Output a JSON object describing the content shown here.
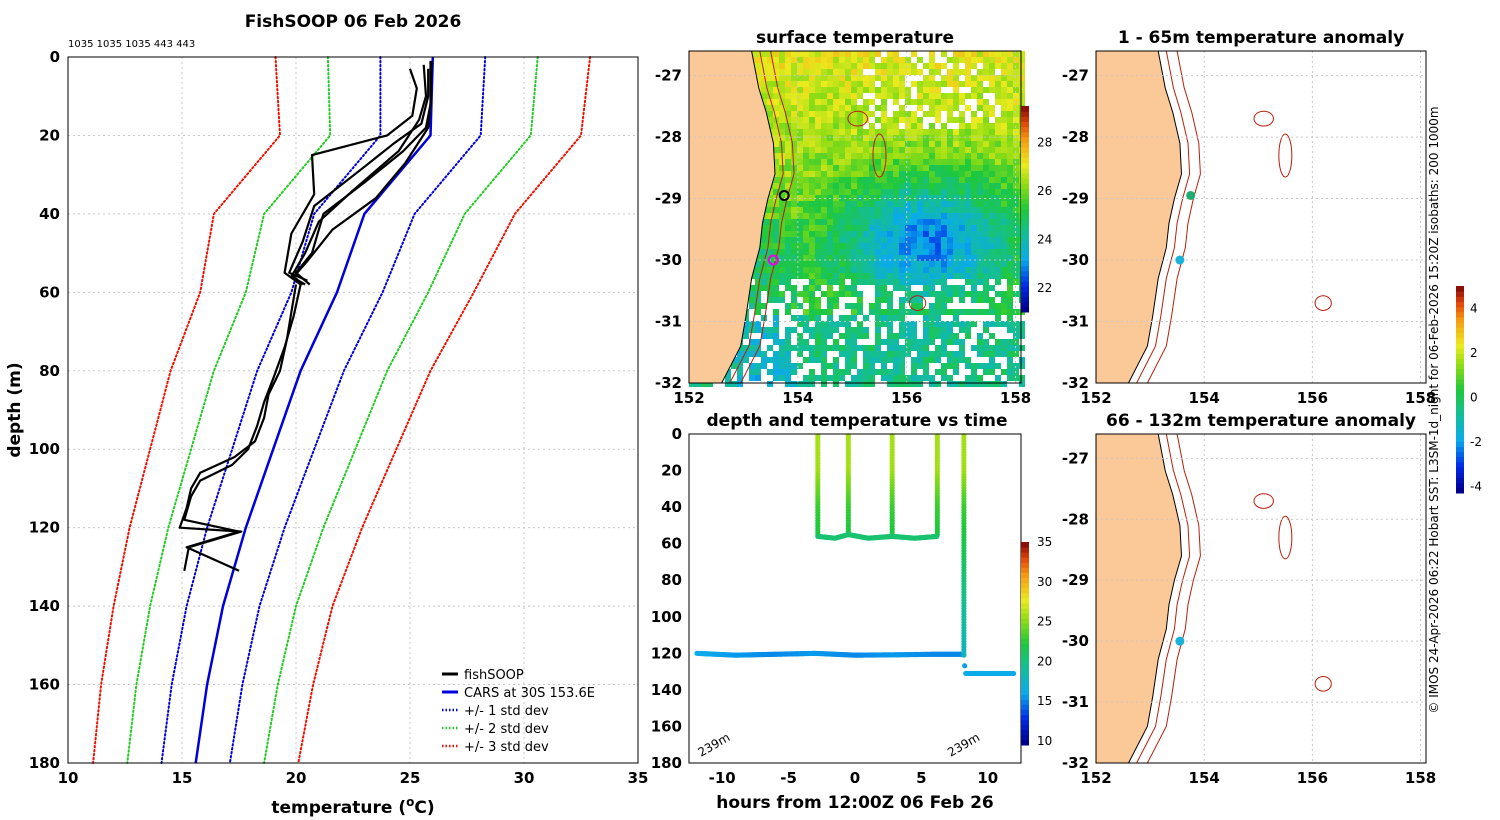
{
  "chart_data": [
    {
      "type": "line",
      "panel": "profile",
      "title": "FishSOOP 06 Feb 2026",
      "subtitle": "1035 1035 1035 443 443",
      "xlabel": "temperature",
      "xlabel_unit_pre": "(",
      "xlabel_unit_sup": "o",
      "xlabel_unit_post": "C)",
      "ylabel": "depth (m)",
      "xlim": [
        10,
        35
      ],
      "ylim": [
        0,
        180
      ],
      "y_reversed": true,
      "grid": true,
      "xticks": [
        "10",
        "15",
        "20",
        "25",
        "30",
        "35"
      ],
      "yticks": [
        "0",
        "20",
        "40",
        "60",
        "80",
        "100",
        "120",
        "140",
        "160",
        "180"
      ],
      "legend_position": "bottom-right",
      "legend": [
        {
          "label": "fishSOOP",
          "color": "#000000",
          "style": "solid"
        },
        {
          "label": "CARS at 30S 153.6E",
          "color": "#0000dd",
          "style": "solid"
        },
        {
          "label": "+/- 1 std dev",
          "color": "#0000dd",
          "style": "dotted"
        },
        {
          "label": "+/- 2 std dev",
          "color": "#22cc22",
          "style": "dotted"
        },
        {
          "label": "+/- 3 std dev",
          "color": "#ee1100",
          "style": "dotted"
        }
      ],
      "cars_depth": [
        0,
        20,
        40,
        60,
        80,
        100,
        120,
        140,
        160,
        180
      ],
      "cars_temp": [
        26.0,
        25.9,
        23.0,
        21.8,
        20.2,
        19.0,
        17.8,
        16.8,
        16.1,
        15.6
      ],
      "std_dev": [
        2.3,
        2.2,
        2.2,
        2.0,
        1.9,
        1.8,
        1.7,
        1.6,
        1.55,
        1.5
      ],
      "profiles": [
        {
          "depth": [
            3,
            8,
            15,
            20,
            25,
            35,
            45,
            55,
            58
          ],
          "temp": [
            25.0,
            25.3,
            25.1,
            24.0,
            20.7,
            20.8,
            19.8,
            19.5,
            20.2
          ]
        },
        {
          "depth": [
            3,
            10,
            17,
            22,
            28,
            38,
            47,
            55,
            57
          ],
          "temp": [
            25.8,
            25.8,
            25.5,
            24.3,
            23.0,
            20.8,
            20.3,
            19.7,
            20.5
          ]
        },
        {
          "depth": [
            1,
            12,
            18,
            24,
            32,
            40,
            50,
            55,
            58
          ],
          "temp": [
            25.9,
            25.9,
            25.7,
            24.7,
            23.0,
            21.2,
            20.7,
            20.0,
            20.6
          ]
        },
        {
          "depth": [
            2,
            10,
            16,
            24,
            34,
            42,
            50,
            56,
            58
          ],
          "temp": [
            25.6,
            25.7,
            25.4,
            24.5,
            22.5,
            21.0,
            20.4,
            19.8,
            20.4
          ]
        },
        {
          "depth": [
            1,
            12,
            18,
            27,
            36,
            44,
            52,
            56,
            58
          ],
          "temp": [
            25.95,
            25.9,
            25.8,
            24.8,
            23.5,
            21.6,
            20.5,
            19.9,
            20.3
          ]
        },
        {
          "depth": [
            58,
            65,
            72,
            80,
            86,
            92,
            98,
            102,
            106,
            110,
            115,
            120,
            121,
            125,
            131
          ],
          "temp": [
            20.0,
            19.8,
            19.6,
            19.3,
            18.8,
            18.6,
            18.2,
            17.3,
            15.8,
            15.4,
            15.2,
            14.9,
            17.6,
            15.3,
            15.1
          ]
        },
        {
          "depth": [
            58,
            66,
            74,
            82,
            88,
            94,
            100,
            104,
            108,
            112,
            118,
            121,
            125,
            131
          ],
          "temp": [
            20.2,
            19.9,
            19.5,
            19.0,
            18.6,
            18.3,
            17.9,
            17.2,
            15.8,
            15.4,
            15.1,
            17.5,
            15.2,
            17.5
          ]
        }
      ]
    },
    {
      "type": "heatmap",
      "panel": "surface",
      "title": "surface temperature",
      "xticks": [
        "152",
        "154",
        "156",
        "158"
      ],
      "yticks": [
        "-27",
        "-28",
        "-29",
        "-30",
        "-31",
        "-32"
      ],
      "xlim": [
        152,
        158.1
      ],
      "ylim": [
        -32,
        -26.6
      ],
      "colorbar_ticks": [
        "22",
        "24",
        "26",
        "28"
      ],
      "colorbar_range": [
        21,
        29.5
      ],
      "markers": [
        {
          "lon": 153.75,
          "lat": -28.95,
          "style": "open-circle",
          "color": "#000000"
        },
        {
          "lon": 153.55,
          "lat": -30.0,
          "style": "open-circle",
          "color": "#ee00ee"
        }
      ]
    },
    {
      "type": "scatter",
      "panel": "depth-time",
      "title": "depth and temperature vs time",
      "xlabel": "hours from 12:00Z 06 Feb 26",
      "xlim": [
        -12.5,
        12.5
      ],
      "ylim": [
        0,
        180
      ],
      "y_reversed": true,
      "xticks": [
        "-10",
        "-5",
        "0",
        "5",
        "10"
      ],
      "yticks": [
        "0",
        "20",
        "40",
        "60",
        "80",
        "100",
        "120",
        "140",
        "160",
        "180"
      ],
      "colorbar_ticks": [
        "10",
        "15",
        "20",
        "25",
        "30",
        "35"
      ],
      "colorbar_range": [
        9.5,
        35
      ],
      "annotations": [
        "239m",
        "239m"
      ],
      "annotation_hours": [
        -11.6,
        7.2
      ],
      "deep_track": {
        "hours": [
          -11.9,
          -9,
          -6,
          -3,
          0,
          3,
          6,
          8.2,
          8.3,
          12
        ],
        "depth": [
          120,
          121,
          120.5,
          120,
          121,
          120.8,
          120.5,
          120.5,
          131,
          131
        ],
        "temp": [
          16,
          15.5,
          15,
          15.5,
          15,
          15.5,
          15,
          15,
          16,
          16
        ]
      },
      "casts": [
        {
          "hours": -2.8,
          "bottom": 56
        },
        {
          "hours": -0.5,
          "bottom": 55
        },
        {
          "hours": 2.8,
          "bottom": 56
        },
        {
          "hours": 6.2,
          "bottom": 56
        },
        {
          "hours": 8.2,
          "bottom": 121
        }
      ],
      "shallow_track": {
        "hours": [
          -2.8,
          -1.5,
          -0.5,
          1,
          2.8,
          4.5,
          6.2
        ],
        "depth": [
          56,
          57,
          55,
          57,
          56,
          57,
          56
        ],
        "temp": [
          20,
          20,
          20,
          20,
          20,
          20,
          20
        ]
      }
    },
    {
      "type": "heatmap",
      "panel": "anomaly-upper",
      "title": "1 - 65m temperature anomaly",
      "xticks": [
        "152",
        "154",
        "156",
        "158"
      ],
      "yticks": [
        "-27",
        "-28",
        "-29",
        "-30",
        "-31",
        "-32"
      ],
      "xlim": [
        152,
        158.1
      ],
      "ylim": [
        -32,
        -26.6
      ],
      "markers": [
        {
          "lon": 153.75,
          "lat": -28.95,
          "value": 0.6,
          "color": "#1fae6f"
        },
        {
          "lon": 153.55,
          "lat": -30.0,
          "value": -1.2,
          "color": "#1ab2dc"
        }
      ]
    },
    {
      "type": "heatmap",
      "panel": "anomaly-lower",
      "title": "66 - 132m temperature anomaly",
      "xticks": [
        "152",
        "154",
        "156",
        "158"
      ],
      "yticks": [
        "-27",
        "-28",
        "-29",
        "-30",
        "-31",
        "-32"
      ],
      "xlim": [
        152,
        158.1
      ],
      "ylim": [
        -32,
        -26.6
      ],
      "markers": [
        {
          "lon": 153.55,
          "lat": -30.0,
          "value": -1.2,
          "color": "#1ab2dc"
        }
      ]
    },
    {
      "type": "colorbar",
      "panel": "anomaly-colorbar",
      "ticks": [
        "4",
        "2",
        "0",
        "-2",
        "-4"
      ],
      "range": [
        -4.3,
        5
      ]
    }
  ],
  "side_text": "© IMOS 24-Apr-2026 06:22 Hobart SST: L3SM-1d_night for 06-Feb-2026 15:20Z isobaths: 200  1000m",
  "colors": {
    "land": "#fbc998",
    "fishsoop": "#000000",
    "cars": "#0000dd",
    "std1": "#0000dd",
    "std2": "#22cc22",
    "std3": "#ee1100",
    "isobath": "#b81f0a"
  }
}
